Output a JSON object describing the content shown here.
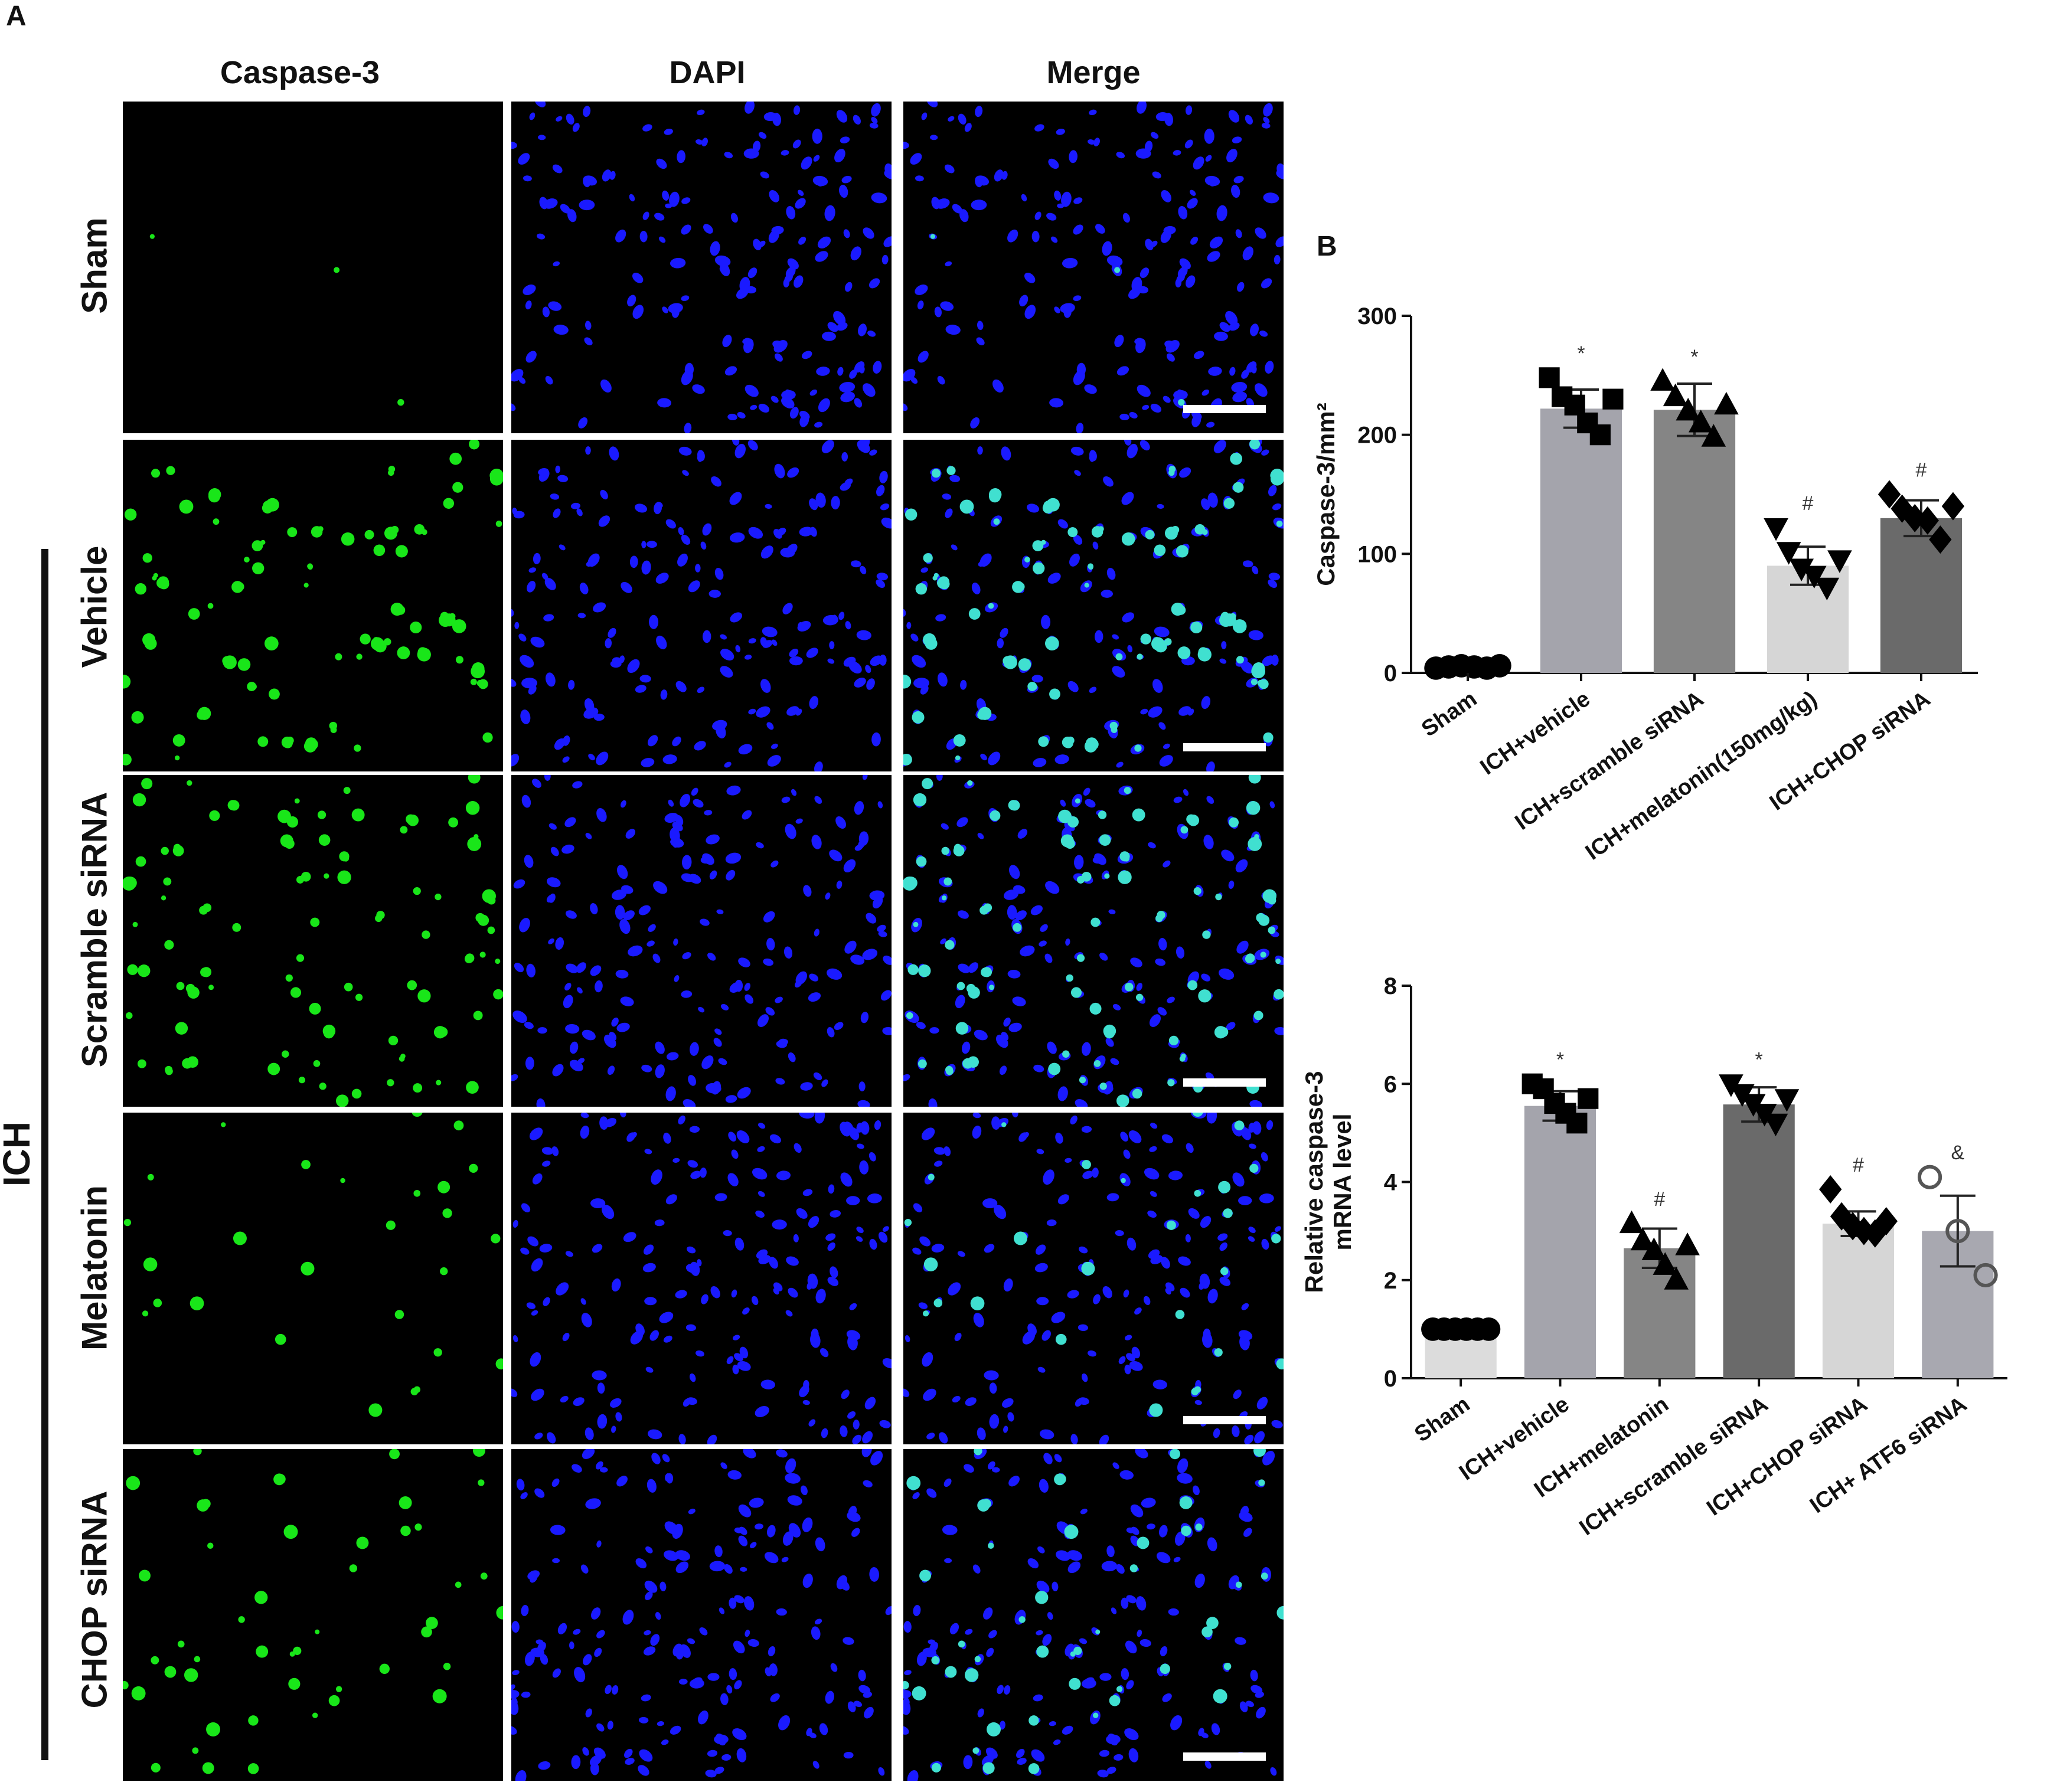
{
  "panel_a": {
    "letter": "A",
    "columns": [
      "Caspase-3",
      "DAPI",
      "Merge"
    ],
    "rows": [
      "Sham",
      "Vehicle",
      "Scramble siRNA",
      "Melatonin",
      "CHOP siRNA"
    ],
    "group_label": "ICH",
    "channel_colors": {
      "caspase": "#19e619",
      "dapi": "#1a1aff",
      "merge_overlap": "#40e0d0"
    },
    "caspase_intensity": [
      0.03,
      1.0,
      1.0,
      0.25,
      0.45
    ]
  },
  "panel_b": {
    "letter": "B"
  },
  "chart_data": [
    {
      "type": "bar",
      "ylabel": "Caspase-3/mm²",
      "ylim": [
        0,
        300
      ],
      "yticks": [
        0,
        100,
        200,
        300
      ],
      "categories": [
        "Sham",
        "ICH+vehicle",
        "ICH+scramble siRNA",
        "ICH+melatonin(150mg/kg)",
        "ICH+CHOP siRNA"
      ],
      "values": [
        5,
        222,
        221,
        90,
        130
      ],
      "errors": [
        2,
        16,
        22,
        16,
        15
      ],
      "annotations": [
        "",
        "*",
        "*",
        "#",
        "#"
      ],
      "bar_colors": [
        "#dcdcdc",
        "#a4a4ac",
        "#858585",
        "#d6d6d6",
        "#6a6a6a"
      ],
      "marker_shapes": [
        "circle",
        "square",
        "triangle",
        "triangle-down",
        "diamond"
      ],
      "points": [
        [
          4,
          5,
          6,
          5,
          4,
          6
        ],
        [
          248,
          232,
          225,
          210,
          200,
          230
        ],
        [
          245,
          232,
          220,
          210,
          198,
          225
        ],
        [
          122,
          102,
          88,
          82,
          72,
          95
        ],
        [
          150,
          138,
          130,
          128,
          112,
          140
        ]
      ]
    },
    {
      "type": "bar",
      "ylabel": "Relative caspase-3\nmRNA level",
      "ylim": [
        0,
        8
      ],
      "yticks": [
        0,
        2,
        4,
        6,
        8
      ],
      "categories": [
        "Sham",
        "ICH+vehicle",
        "ICH+melatonin",
        "ICH+scramble siRNA",
        "ICH+CHOP siRNA",
        "ICH+ ATF6 siRNA"
      ],
      "values": [
        1.0,
        5.55,
        2.65,
        5.58,
        3.15,
        3.0
      ],
      "errors": [
        0.05,
        0.3,
        0.4,
        0.35,
        0.25,
        0.72
      ],
      "annotations": [
        "",
        "*",
        "#",
        "*",
        "#",
        "&"
      ],
      "bar_colors": [
        "#dcdcdc",
        "#a4a4ac",
        "#858585",
        "#6a6a6a",
        "#d6d6d6",
        "#a8a8b0"
      ],
      "marker_shapes": [
        "circle",
        "square",
        "triangle",
        "triangle-down",
        "diamond",
        "circle-open"
      ],
      "points": [
        [
          1.0,
          1.0,
          1.0,
          1.0,
          1.0,
          1.0
        ],
        [
          6.0,
          5.9,
          5.6,
          5.4,
          5.2,
          5.7
        ],
        [
          3.15,
          2.8,
          2.6,
          2.3,
          2.0,
          2.7
        ],
        [
          6.0,
          5.8,
          5.6,
          5.4,
          5.2,
          5.7
        ],
        [
          3.85,
          3.3,
          3.1,
          3.0,
          2.95,
          3.2
        ],
        [
          4.1,
          3.0,
          2.1
        ]
      ]
    }
  ]
}
